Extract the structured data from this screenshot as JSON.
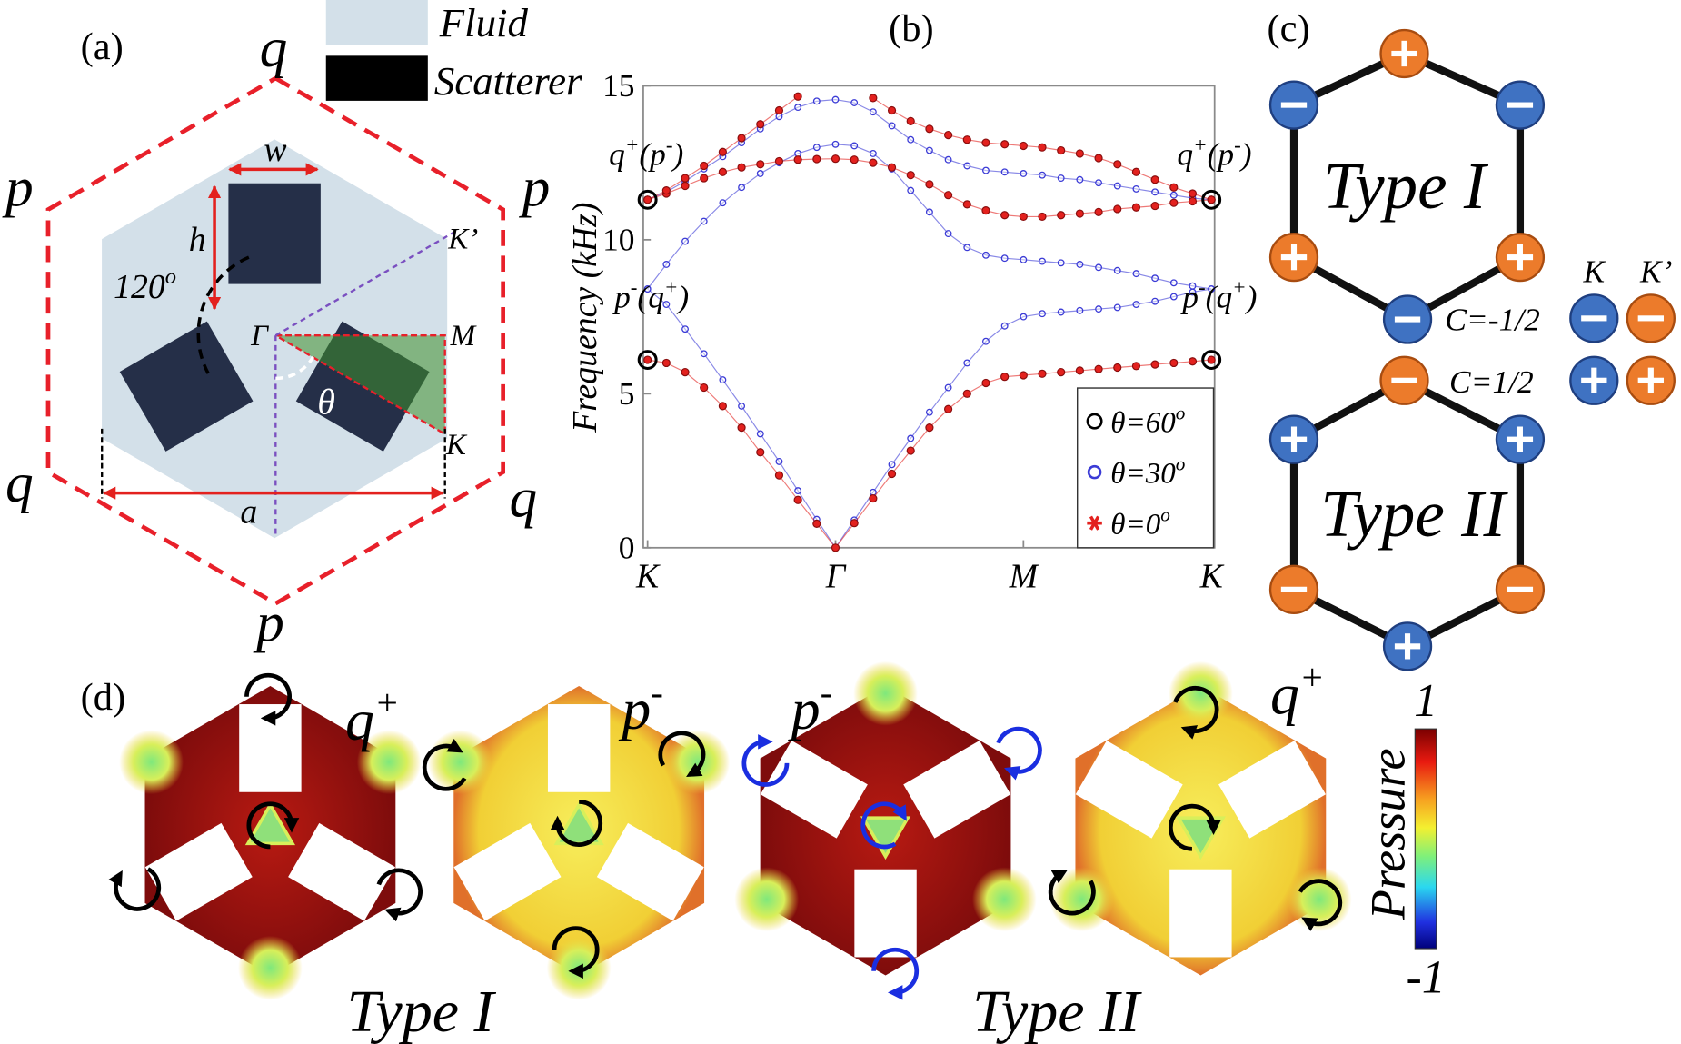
{
  "panel_a": {
    "label": "(a)",
    "legend": [
      {
        "label": "Fluid"
      },
      {
        "label": "Scatterer"
      }
    ],
    "corner_labels": [
      "q",
      "p",
      "p",
      "q",
      "q",
      "p"
    ],
    "w": "w",
    "h": "h",
    "a": "a",
    "angle": [
      "120",
      "o"
    ],
    "theta": "θ",
    "points": [
      "Γ",
      "M",
      "K",
      "K’"
    ]
  },
  "chart_data": {
    "type": "line",
    "label": "(b)",
    "ylabel": "Frequency (kHz)",
    "x": [
      0,
      0.1,
      0.2,
      0.3,
      0.4,
      0.5,
      0.6,
      0.7,
      0.8,
      0.9,
      1.0,
      1.1,
      1.2,
      1.3,
      1.4,
      1.5,
      1.6,
      1.7,
      1.8,
      1.9,
      2.0,
      2.1,
      2.2,
      2.3,
      2.4,
      2.5,
      2.6,
      2.7,
      2.8,
      2.9,
      3.0
    ],
    "xlim": [
      0,
      3
    ],
    "xticks": [
      {
        "value": 0,
        "label": "K"
      },
      {
        "value": 1,
        "label": "Γ"
      },
      {
        "value": 2,
        "label": "M"
      },
      {
        "value": 3,
        "label": "K"
      }
    ],
    "ylim": [
      0,
      15
    ],
    "yticks": [
      0,
      5,
      10,
      15
    ],
    "grid": false,
    "series": [
      {
        "name": "θ=60",
        "name_sup": "o",
        "color": "#000000",
        "marker": "ring",
        "x": [
          0,
          0,
          3,
          3
        ],
        "values": [
          11.3,
          6.1,
          11.3,
          6.1
        ]
      },
      {
        "name": "θ=30",
        "name_sup": "o",
        "color": "#3b3bd6",
        "marker": "circle",
        "bands": [
          {
            "values": [
              8.4,
              7.9,
              7.1,
              6.3,
              5.45,
              4.6,
              3.7,
              2.8,
              1.85,
              0.92,
              0,
              0.9,
              1.8,
              2.7,
              3.55,
              4.4,
              5.2,
              6.0,
              6.7,
              7.2,
              7.5,
              7.6,
              7.65,
              7.7,
              7.75,
              7.8,
              7.9,
              8.0,
              8.15,
              8.3,
              8.4
            ]
          },
          {
            "values": [
              8.4,
              9.2,
              9.95,
              10.6,
              11.2,
              11.7,
              12.15,
              12.5,
              12.8,
              13.0,
              13.1,
              13.05,
              12.8,
              12.3,
              11.6,
              10.9,
              10.2,
              9.75,
              9.5,
              9.4,
              9.35,
              9.3,
              9.25,
              9.2,
              9.1,
              9.0,
              8.9,
              8.75,
              8.6,
              8.5,
              8.4
            ]
          },
          {
            "values": [
              11.3,
              11.55,
              11.9,
              12.3,
              12.7,
              13.15,
              13.6,
              14.0,
              14.3,
              14.5,
              14.55,
              14.45,
              14.15,
              13.7,
              13.25,
              12.9,
              12.6,
              12.4,
              12.25,
              12.2,
              12.15,
              12.1,
              12.0,
              11.95,
              11.85,
              11.75,
              11.65,
              11.55,
              11.45,
              11.35,
              11.3
            ]
          }
        ]
      },
      {
        "name": "θ=0",
        "name_sup": "o",
        "color": "#e3211e",
        "marker": "star",
        "bands": [
          {
            "values": [
              6.1,
              6.0,
              5.7,
              5.2,
              4.6,
              3.9,
              3.1,
              2.35,
              1.55,
              0.78,
              0,
              0.8,
              1.6,
              2.4,
              3.15,
              3.9,
              4.5,
              5.0,
              5.35,
              5.55,
              5.6,
              5.65,
              5.7,
              5.75,
              5.8,
              5.85,
              5.9,
              5.95,
              6.0,
              6.05,
              6.1
            ]
          },
          {
            "values": [
              11.3,
              11.5,
              11.75,
              12.0,
              12.2,
              12.35,
              12.45,
              12.55,
              12.6,
              12.62,
              12.63,
              12.6,
              12.5,
              12.35,
              12.1,
              11.8,
              11.45,
              11.15,
              10.95,
              10.8,
              10.75,
              10.75,
              10.8,
              10.85,
              10.9,
              11.0,
              11.05,
              11.1,
              11.2,
              11.25,
              11.3
            ]
          },
          {
            "values": [
              11.3,
              11.6,
              12.0,
              12.4,
              12.85,
              13.3,
              13.75,
              14.2,
              14.65,
              null,
              null,
              null,
              14.6,
              14.2,
              13.85,
              13.6,
              13.4,
              13.25,
              13.15,
              13.1,
              13.05,
              13.0,
              12.9,
              12.8,
              12.65,
              12.45,
              12.2,
              11.95,
              11.7,
              11.5,
              11.3
            ]
          }
        ]
      }
    ],
    "annotations": [
      {
        "parts": [
          "q",
          "+",
          "(p",
          "-",
          ")"
        ]
      },
      {
        "parts": [
          "q",
          "+",
          "(p",
          "-",
          ")"
        ]
      },
      {
        "parts": [
          "p",
          "-",
          "(q",
          "+",
          ")"
        ]
      },
      {
        "parts": [
          "p",
          "-",
          "(q",
          "+",
          ")"
        ]
      }
    ]
  },
  "panel_c": {
    "label": "(c)",
    "types": [
      "Type I",
      "Type II"
    ],
    "chern": [
      "C=-1/2",
      "C=1/2"
    ],
    "valleys": [
      "K",
      "K’"
    ]
  },
  "panel_d": {
    "label": "(d)",
    "modes": [
      [
        "q",
        "+"
      ],
      [
        "p",
        "-"
      ],
      [
        "p",
        "-"
      ],
      [
        "q",
        "+"
      ]
    ],
    "types": [
      "Type I",
      "Type II"
    ],
    "colorbar": {
      "title": "Pressure",
      "max": 1,
      "min": -1
    }
  }
}
